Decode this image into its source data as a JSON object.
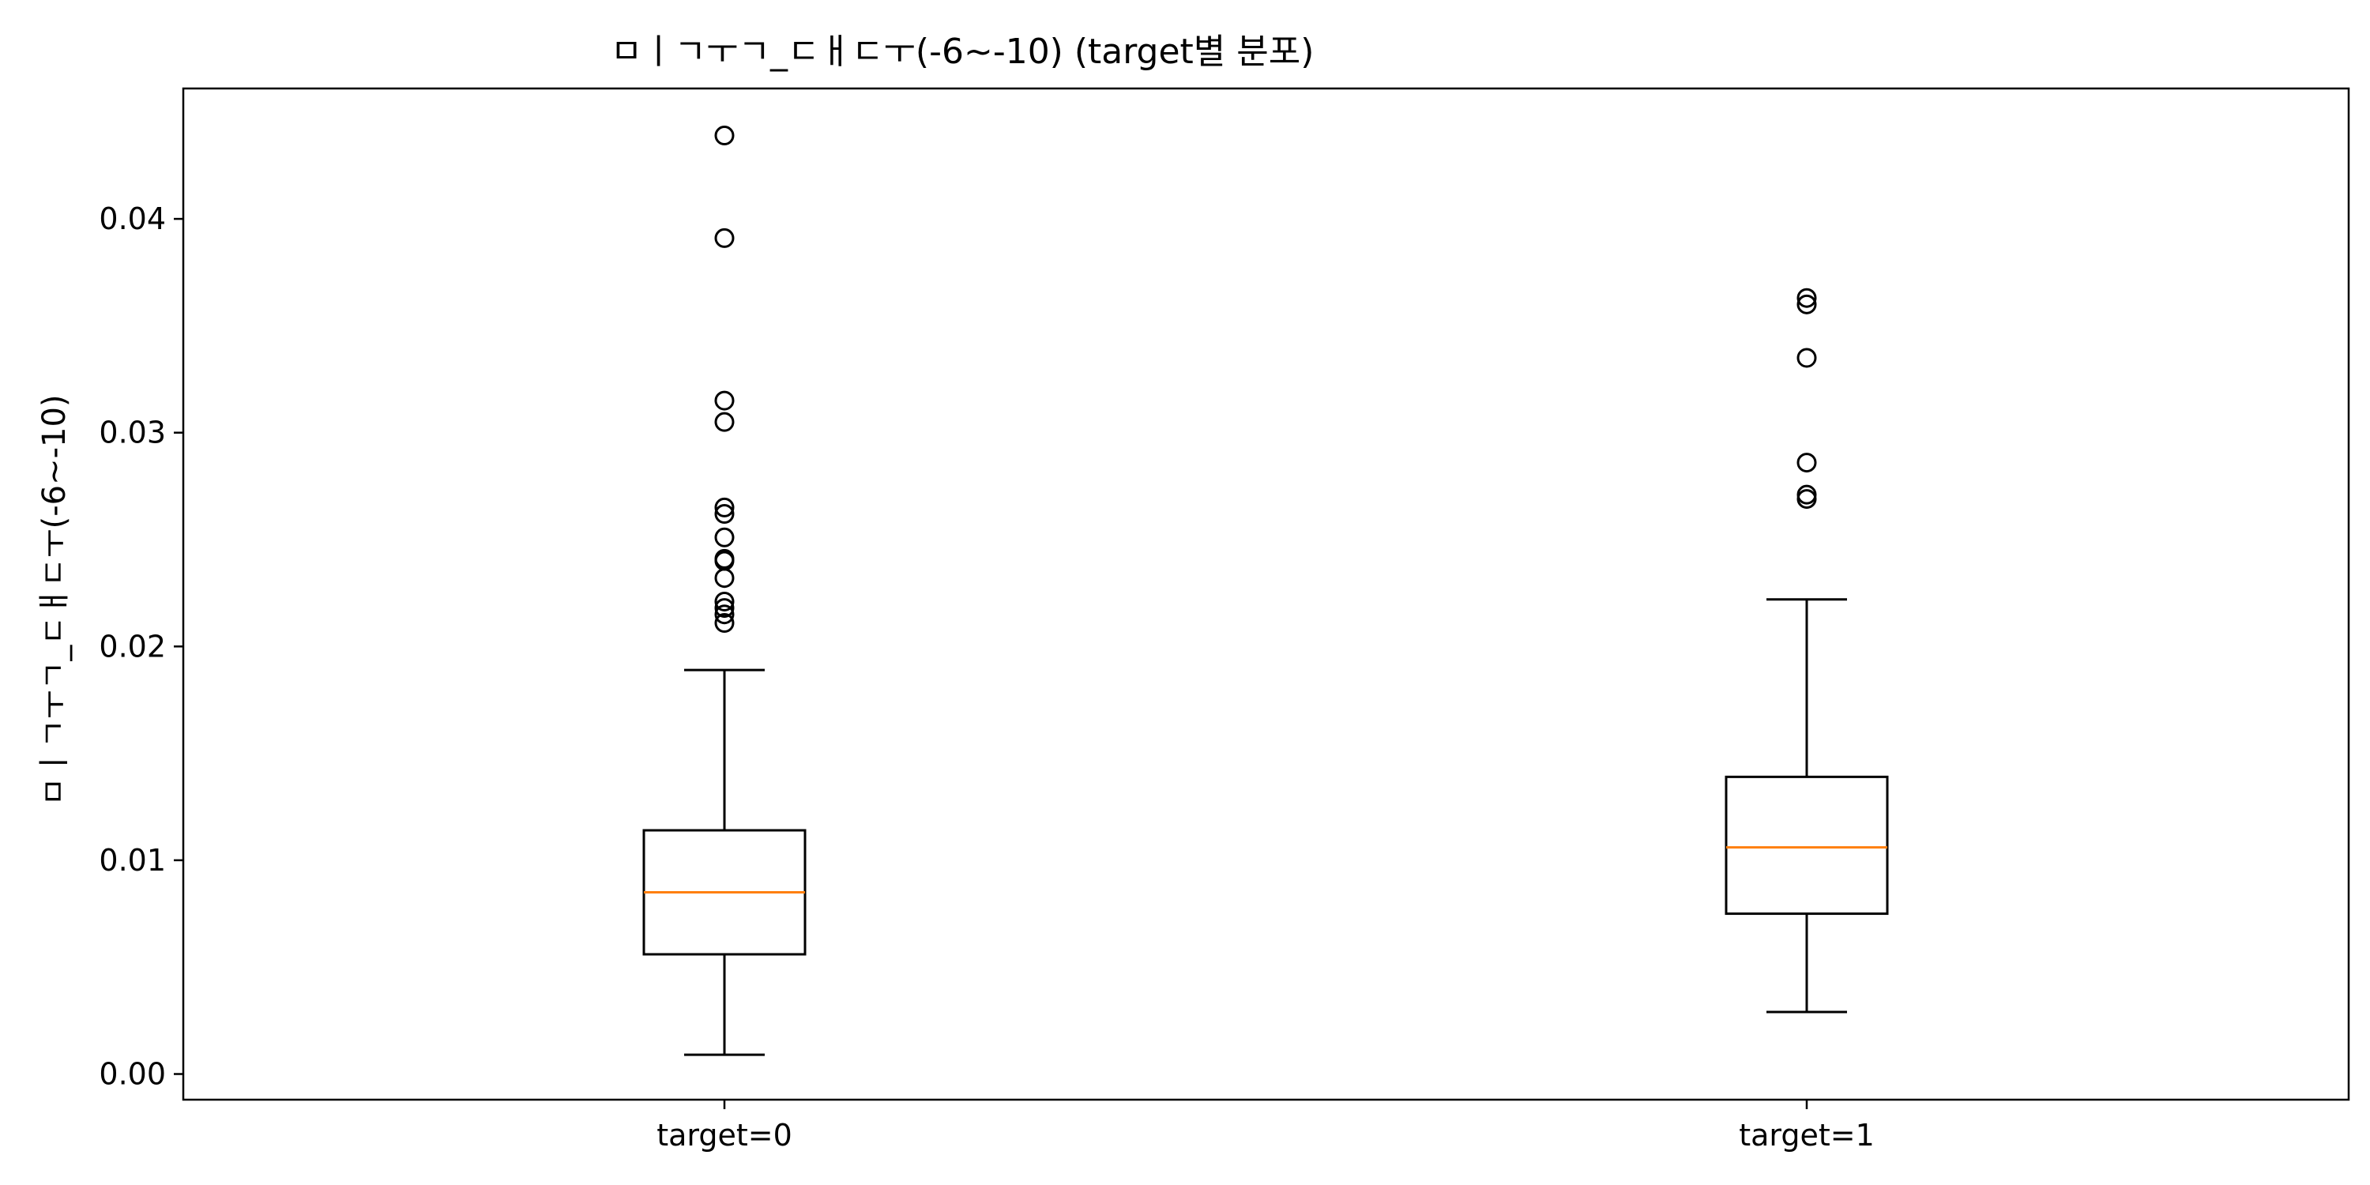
{
  "chart_data": {
    "type": "box",
    "title": "ㅁㅣㄱㅜㄱ_ㄷㅐㄷㅜ(-6~-10) (target별 분포)",
    "xlabel": "",
    "ylabel": "ㅁㅣㄱㅜㄱ_ㄷㅐㄷㅜ(-6~-10)",
    "ylim": [
      -0.0012,
      0.0461
    ],
    "yticks": [
      0.0,
      0.01,
      0.02,
      0.03,
      0.04
    ],
    "ytick_labels": [
      "0.00",
      "0.01",
      "0.02",
      "0.03",
      "0.04"
    ],
    "grid": false,
    "categories": [
      "target=0",
      "target=1"
    ],
    "boxes": [
      {
        "name": "target=0",
        "whisker_low": 0.0009,
        "q1": 0.0056,
        "median": 0.0085,
        "q3": 0.0114,
        "whisker_high": 0.0189,
        "outliers": [
          0.0211,
          0.0215,
          0.0218,
          0.0221,
          0.0232,
          0.024,
          0.0241,
          0.0251,
          0.0262,
          0.0265,
          0.0305,
          0.0315,
          0.0391,
          0.0439
        ]
      },
      {
        "name": "target=1",
        "whisker_low": 0.0029,
        "q1": 0.0075,
        "median": 0.0106,
        "q3": 0.0139,
        "whisker_high": 0.0222,
        "outliers": [
          0.0269,
          0.0271,
          0.0286,
          0.0335,
          0.036,
          0.0363
        ]
      }
    ],
    "colors": {
      "box": "#000000",
      "median": "#ff7f0e",
      "outlier_edge": "#000000"
    }
  }
}
